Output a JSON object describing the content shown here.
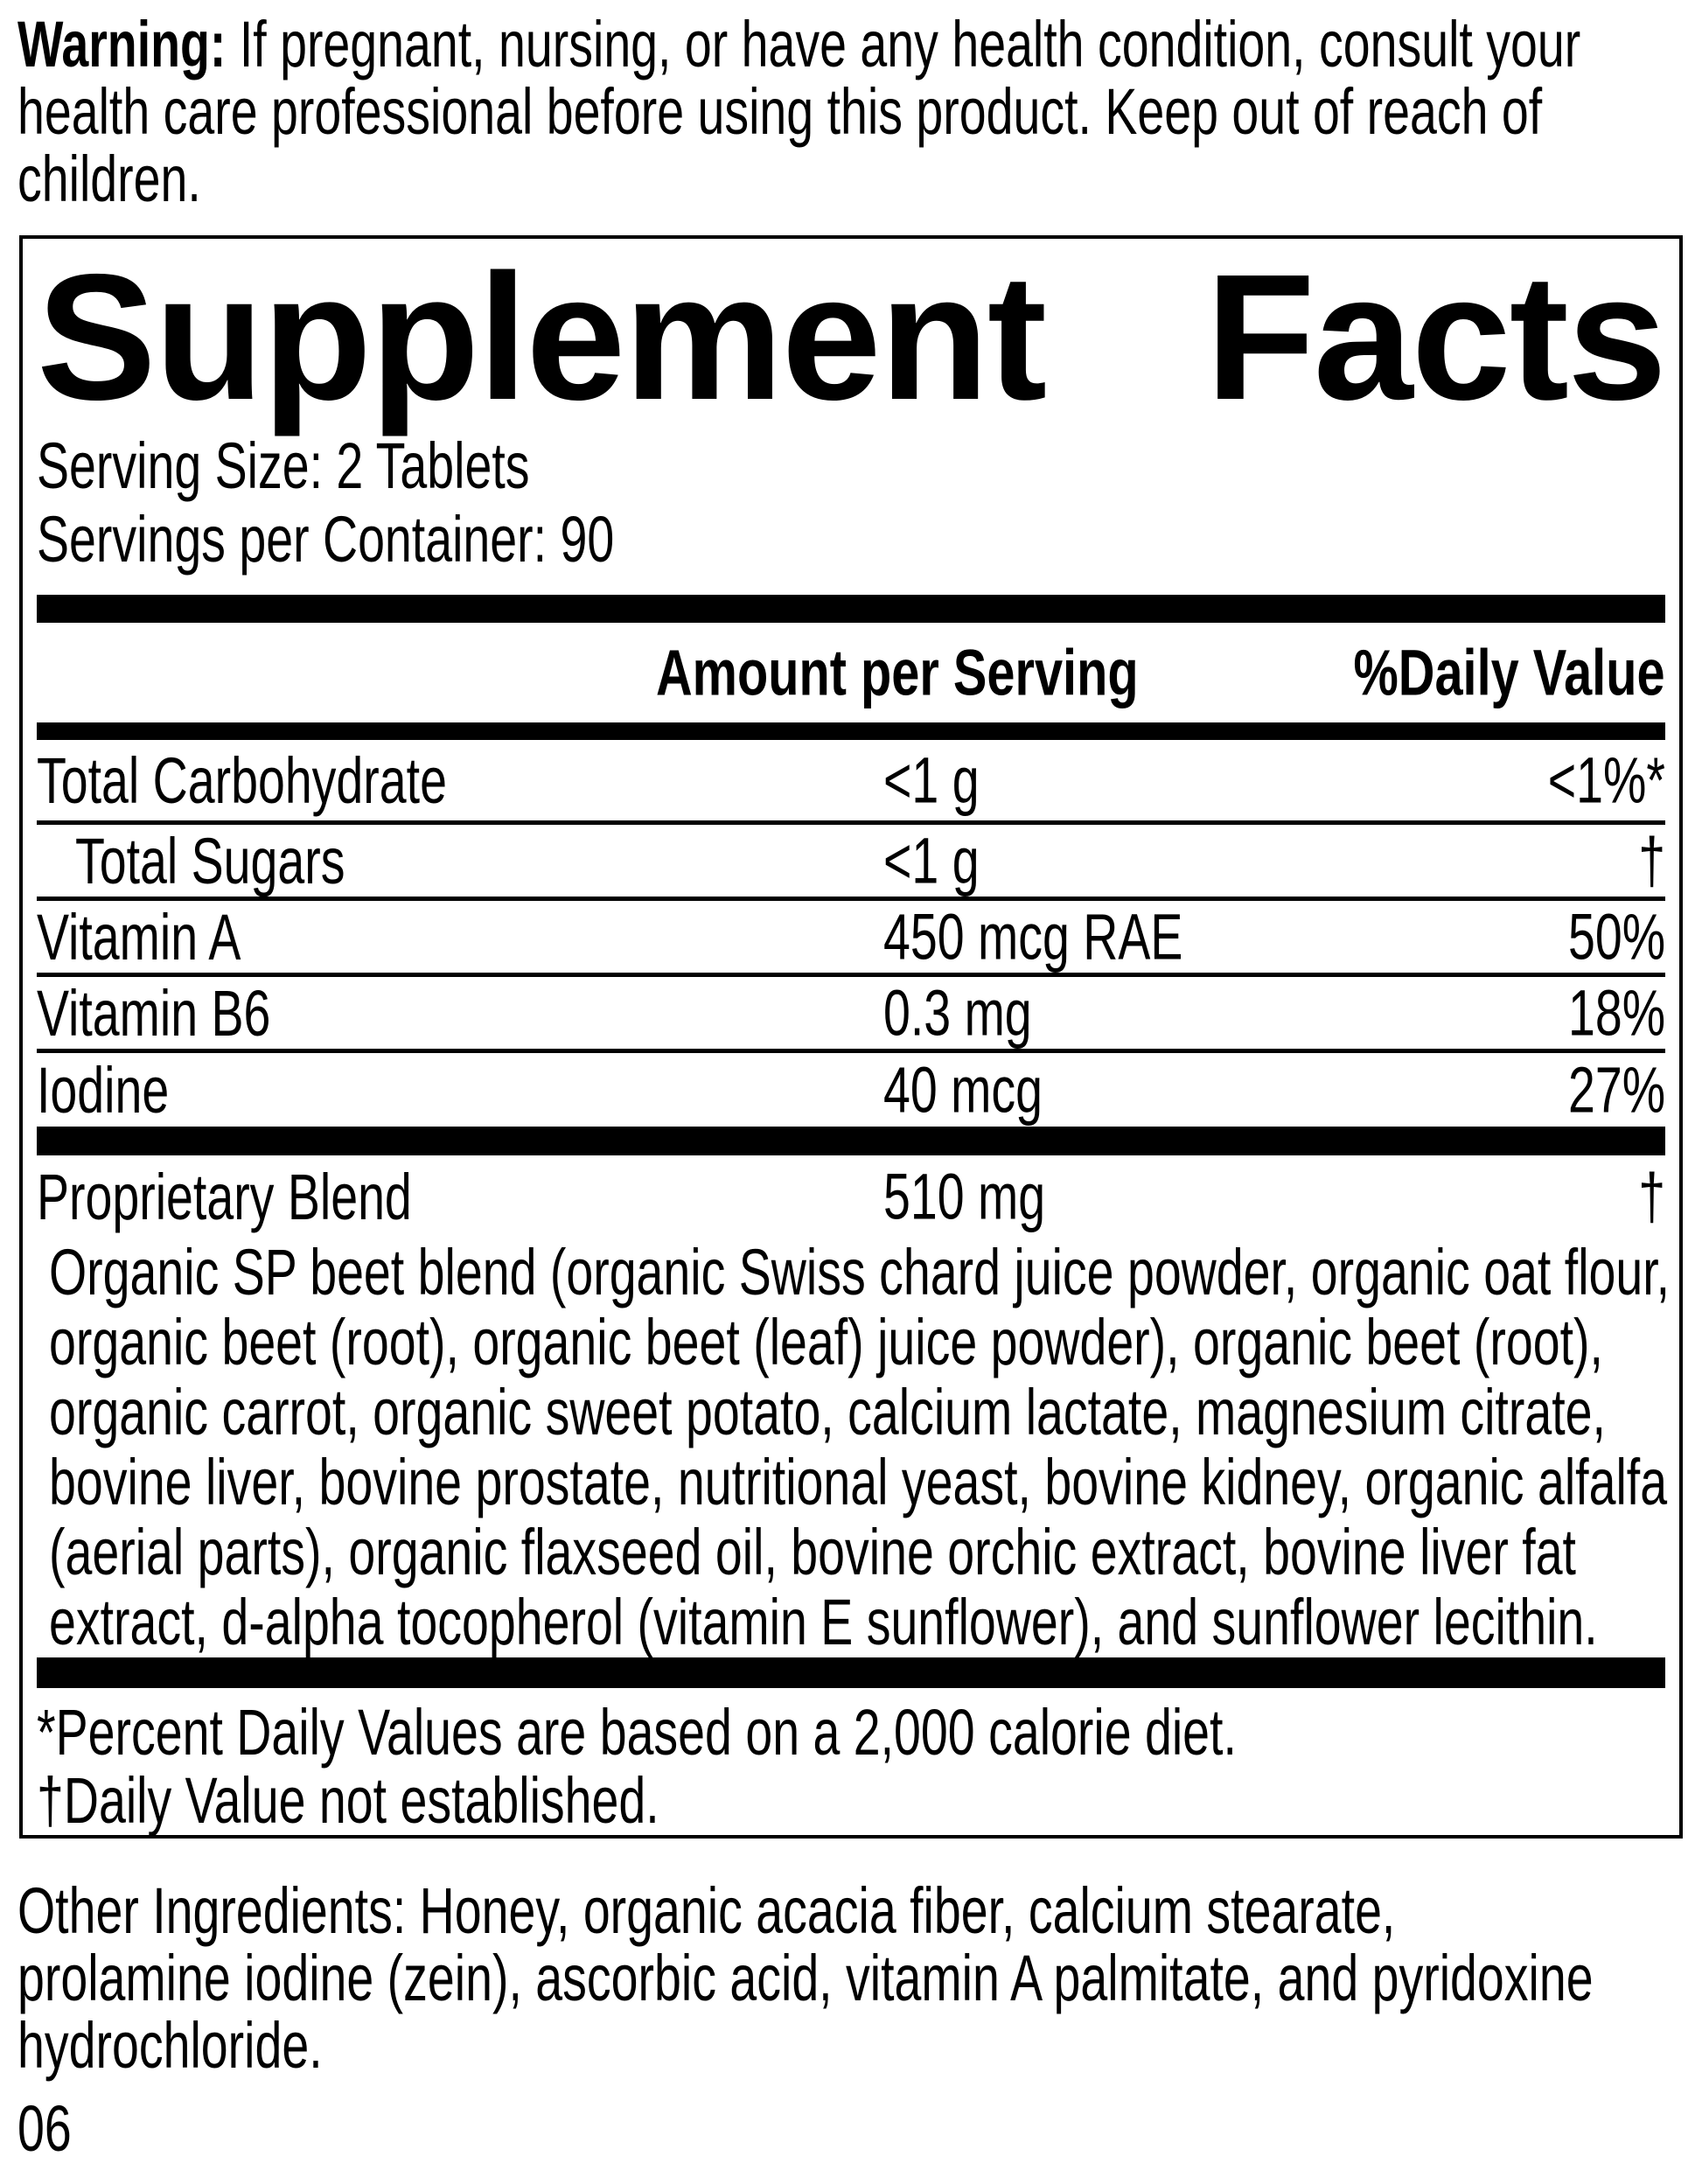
{
  "warning": {
    "label": "Warning:",
    "line1_rest": " If pregnant, nursing, or have any health condition, consult your",
    "line2": "health care professional before using this product. Keep out of reach of",
    "line3": "children."
  },
  "panel": {
    "title_word1": "Supplement",
    "title_word2": "Facts",
    "serving_size": "Serving Size: 2 Tablets",
    "servings_per_container": "Servings per Container: 90",
    "columns": {
      "amount": "Amount per Serving",
      "daily_value": "%Daily Value"
    },
    "rows": [
      {
        "name": "Total Carbohydrate",
        "amount": "<1 g",
        "dv": "<1%*"
      },
      {
        "name": "Total Sugars",
        "amount": "<1 g",
        "dv": "†"
      },
      {
        "name": "Vitamin A",
        "amount": "450 mcg RAE",
        "dv": "50%"
      },
      {
        "name": "Vitamin B6",
        "amount": "0.3 mg",
        "dv": "18%"
      },
      {
        "name": "Iodine",
        "amount": "40 mcg",
        "dv": "27%"
      }
    ],
    "proprietary": {
      "name": "Proprietary Blend",
      "amount": "510 mg",
      "dv": "†"
    },
    "blend_lines": [
      "Organic SP beet blend (organic Swiss chard juice powder, organic oat flour,",
      "organic beet (root), organic beet (leaf) juice powder), organic beet (root),",
      "organic carrot, organic sweet potato, calcium lactate, magnesium citrate,",
      "bovine liver, bovine prostate, nutritional yeast, bovine kidney, organic alfalfa",
      "(aerial parts), organic flaxseed oil, bovine orchic extract, bovine liver fat",
      "extract, d-alpha tocopherol (vitamin E sunflower), and sunflower lecithin."
    ],
    "footnote_asterisk": "*Percent Daily Values are based on a 2,000 calorie diet.",
    "footnote_dagger": "†Daily Value not established."
  },
  "other_ingredients": {
    "line1": "Other Ingredients: Honey, organic acacia fiber, calcium stearate,",
    "line2": "prolamine iodine (zein), ascorbic acid, vitamin A palmitate, and pyridoxine",
    "line3": "hydrochloride."
  },
  "page_code": "06",
  "colors": {
    "ink": "#000000",
    "paper": "#ffffff"
  }
}
